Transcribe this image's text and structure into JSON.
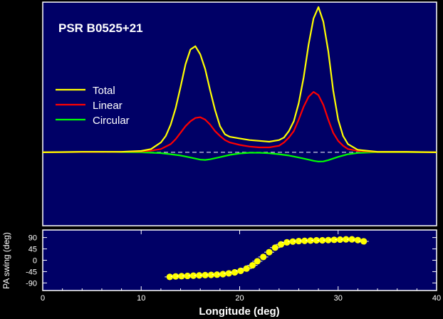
{
  "chart_data": [
    {
      "type": "line",
      "title": "PSR B0525+21",
      "xlim": [
        0,
        40
      ],
      "ylim": [
        -0.45,
        0.92
      ],
      "grid": false,
      "legend_position": "left",
      "baseline": "dashed zero line",
      "series": [
        {
          "name": "Total",
          "color": "#ffff00",
          "x": [
            0,
            4,
            8,
            10,
            11,
            12,
            12.5,
            13,
            13.5,
            14,
            14.5,
            15,
            15.5,
            16,
            16.5,
            17,
            17.5,
            18,
            18.5,
            19,
            20,
            21,
            22,
            23,
            24,
            24.5,
            25,
            25.5,
            26,
            26.5,
            27,
            27.5,
            28,
            28.5,
            29,
            29.5,
            30,
            30.5,
            31,
            32,
            34,
            37,
            40
          ],
          "y": [
            0,
            0.003,
            0.003,
            0.008,
            0.02,
            0.06,
            0.1,
            0.17,
            0.27,
            0.4,
            0.54,
            0.63,
            0.65,
            0.6,
            0.51,
            0.38,
            0.26,
            0.16,
            0.11,
            0.095,
            0.085,
            0.075,
            0.07,
            0.065,
            0.075,
            0.09,
            0.13,
            0.19,
            0.3,
            0.46,
            0.66,
            0.82,
            0.89,
            0.8,
            0.62,
            0.38,
            0.2,
            0.1,
            0.05,
            0.015,
            0.003,
            0.003,
            0
          ]
        },
        {
          "name": "Linear",
          "color": "#ff0000",
          "x": [
            0,
            4,
            8,
            10,
            11,
            12,
            13,
            13.5,
            14,
            14.5,
            15,
            15.5,
            16,
            16.5,
            17,
            17.5,
            18,
            18.5,
            19,
            20,
            21,
            22,
            23,
            24,
            24.5,
            25,
            25.5,
            26,
            26.5,
            27,
            27.5,
            28,
            28.5,
            29,
            29.5,
            30,
            30.5,
            31,
            32,
            34,
            37,
            40
          ],
          "y": [
            0,
            0.002,
            0.003,
            0.005,
            0.01,
            0.02,
            0.05,
            0.08,
            0.12,
            0.16,
            0.19,
            0.21,
            0.215,
            0.2,
            0.17,
            0.13,
            0.1,
            0.075,
            0.06,
            0.045,
            0.035,
            0.03,
            0.03,
            0.04,
            0.06,
            0.09,
            0.13,
            0.2,
            0.28,
            0.34,
            0.37,
            0.35,
            0.29,
            0.2,
            0.12,
            0.07,
            0.04,
            0.02,
            0.008,
            0.002,
            0.002,
            0
          ]
        },
        {
          "name": "Circular",
          "color": "#00ff00",
          "x": [
            0,
            6,
            10,
            12,
            13,
            14,
            15,
            16,
            16.5,
            17,
            18,
            19,
            20,
            21,
            22,
            23,
            24,
            25,
            26,
            27,
            27.5,
            28,
            28.5,
            29,
            30,
            31,
            32,
            34,
            40
          ],
          "y": [
            0,
            0.003,
            0,
            -0.005,
            -0.012,
            -0.02,
            -0.032,
            -0.045,
            -0.047,
            -0.043,
            -0.03,
            -0.016,
            -0.007,
            -0.003,
            -0.003,
            -0.006,
            -0.012,
            -0.02,
            -0.032,
            -0.045,
            -0.052,
            -0.057,
            -0.056,
            -0.048,
            -0.028,
            -0.012,
            -0.004,
            0.001,
            0
          ]
        }
      ]
    },
    {
      "type": "scatter",
      "ylabel": "PA swing (deg)",
      "xlabel": "Longitude (deg)",
      "xlim": [
        0,
        40
      ],
      "ylim": [
        -120,
        120
      ],
      "xticks": [
        "0",
        "10",
        "20",
        "30",
        "40"
      ],
      "yticks": [
        "90",
        "45",
        "0",
        "-45",
        "-90"
      ],
      "grid": false,
      "series": [
        {
          "name": "",
          "color": "#ffff00",
          "x": [
            12.9,
            13.5,
            14.1,
            14.7,
            15.3,
            15.9,
            16.5,
            17.1,
            17.7,
            18.3,
            18.9,
            19.5,
            20.1,
            20.7,
            21.3,
            21.8,
            22.4,
            23.0,
            23.6,
            24.2,
            24.8,
            25.4,
            26.0,
            26.6,
            27.2,
            27.8,
            28.4,
            29.0,
            29.6,
            30.2,
            30.8,
            31.4,
            32.0,
            32.6
          ],
          "y": [
            -66,
            -64,
            -63,
            -62,
            -61,
            -60,
            -59,
            -58,
            -57,
            -55,
            -52,
            -48,
            -42,
            -33,
            -20,
            -4,
            13,
            32,
            50,
            63,
            71,
            74,
            76,
            77,
            78,
            79,
            79,
            80,
            81,
            82,
            83,
            83,
            80,
            75
          ]
        }
      ]
    }
  ]
}
